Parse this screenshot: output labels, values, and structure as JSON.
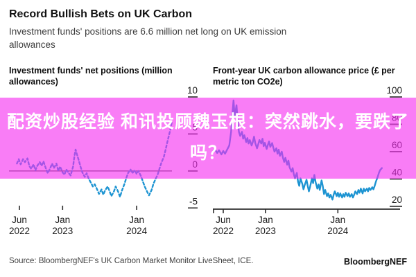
{
  "header": {
    "title": "Record Bullish Bets on UK Carbon",
    "subtitle": "Investment funds' positions are 6.6 million net long on UK emission allowances"
  },
  "overlay": {
    "line1": "配资炒股经验 和讯投顾魏玉根：突然跳水，要跌了",
    "line2": "吗？",
    "bg_color": "#F52DF0",
    "bg_opacity": 0.62,
    "text_color": "#FFFFFF"
  },
  "footer": {
    "source": "Source: BloombergNEF's UK Carbon Market Monitor LiveSheet, ICE.",
    "brand": "BloombergNEF"
  },
  "chart_data": [
    {
      "type": "line",
      "title": "Investment funds' net positions (million allowances)",
      "line_color": "#1D94D2",
      "line_style": "dashed",
      "ylim": [
        -6,
        10
      ],
      "yticks": [
        10,
        5,
        0,
        -5
      ],
      "zero_line": true,
      "x_axis_line": false,
      "x_unit": "months since Jun 2022",
      "xticks": [
        {
          "m": 0,
          "label": [
            "Jun",
            "2022"
          ]
        },
        {
          "m": 7,
          "label": [
            "Jan",
            "2023"
          ]
        },
        {
          "m": 19,
          "label": [
            "Jan",
            "2024"
          ]
        }
      ],
      "series": [
        {
          "name": "Investment funds' net positions (million allowances)",
          "points": [
            [
              -0.4,
              1.0
            ],
            [
              -0.1,
              1.6
            ],
            [
              0.2,
              0.9
            ],
            [
              0.6,
              1.6
            ],
            [
              0.9,
              1.2
            ],
            [
              1.3,
              1.7
            ],
            [
              1.6,
              0.7
            ],
            [
              1.9,
              0.3
            ],
            [
              2.3,
              0.9
            ],
            [
              2.6,
              0.1
            ],
            [
              2.9,
              0.7
            ],
            [
              3.3,
              1.2
            ],
            [
              3.6,
              0.7
            ],
            [
              3.9,
              1.3
            ],
            [
              4.3,
              0.3
            ],
            [
              4.6,
              -0.3
            ],
            [
              5.0,
              0.4
            ],
            [
              5.3,
              1.0
            ],
            [
              5.6,
              0.4
            ],
            [
              6.0,
              1.0
            ],
            [
              6.3,
              0.0
            ],
            [
              6.6,
              0.6
            ],
            [
              7.0,
              -0.2
            ],
            [
              7.3,
              -0.5
            ],
            [
              7.6,
              0.2
            ],
            [
              8.0,
              -0.3
            ],
            [
              8.3,
              -0.6
            ],
            [
              8.7,
              0.6
            ],
            [
              8.9,
              1.9
            ],
            [
              9.1,
              2.9
            ],
            [
              9.3,
              2.3
            ],
            [
              9.6,
              1.5
            ],
            [
              9.9,
              0.6
            ],
            [
              10.2,
              -0.2
            ],
            [
              10.6,
              -0.8
            ],
            [
              10.9,
              -0.3
            ],
            [
              11.2,
              -1.0
            ],
            [
              11.6,
              -1.6
            ],
            [
              11.9,
              -2.1
            ],
            [
              12.2,
              -1.8
            ],
            [
              12.6,
              -2.5
            ],
            [
              12.9,
              -3.1
            ],
            [
              13.3,
              -2.5
            ],
            [
              13.6,
              -3.2
            ],
            [
              13.9,
              -2.6
            ],
            [
              14.3,
              -2.1
            ],
            [
              14.6,
              -2.7
            ],
            [
              14.9,
              -3.4
            ],
            [
              15.3,
              -2.8
            ],
            [
              15.6,
              -2.1
            ],
            [
              16.0,
              -2.8
            ],
            [
              16.3,
              -3.5
            ],
            [
              16.6,
              -2.7
            ],
            [
              17.0,
              -1.8
            ],
            [
              17.3,
              -1.0
            ],
            [
              17.6,
              -0.3
            ],
            [
              18.0,
              0.2
            ],
            [
              18.3,
              -0.3
            ],
            [
              18.7,
              0.1
            ],
            [
              19.0,
              -0.4
            ],
            [
              19.3,
              0.0
            ],
            [
              19.7,
              -0.7
            ],
            [
              20.0,
              -1.4
            ],
            [
              20.3,
              -2.1
            ],
            [
              20.7,
              -2.8
            ],
            [
              21.0,
              -3.3
            ],
            [
              21.4,
              -2.6
            ],
            [
              21.7,
              -1.8
            ],
            [
              22.0,
              -1.2
            ],
            [
              22.4,
              -0.5
            ],
            [
              22.7,
              0.3
            ],
            [
              23.0,
              1.1
            ],
            [
              23.4,
              1.9
            ],
            [
              23.7,
              2.9
            ],
            [
              24.0,
              4.0
            ],
            [
              24.4,
              5.4
            ],
            [
              24.7,
              6.6
            ]
          ]
        }
      ]
    },
    {
      "type": "line",
      "title": "Front-year UK carbon allowance price (£ per metric ton CO2e)",
      "line_color": "#1D94D2",
      "line_style": "solid",
      "ylim": [
        18,
        100
      ],
      "yticks": [
        100,
        80,
        60,
        40,
        20
      ],
      "zero_line": false,
      "x_axis_line": true,
      "x_unit": "months since Jun 2022",
      "xticks": [
        {
          "m": 0,
          "label": [
            "Jun",
            "2022"
          ]
        },
        {
          "m": 7,
          "label": [
            "Jan",
            "2023"
          ]
        },
        {
          "m": 19,
          "label": [
            "Jan",
            "2024"
          ]
        }
      ],
      "series": [
        {
          "name": "Front-year UK carbon allowance price (£/t CO2e)",
          "points": [
            [
              -1.7,
              60
            ],
            [
              -1.4,
              62
            ],
            [
              -1.0,
              59
            ],
            [
              -0.7,
              61
            ],
            [
              -0.3,
              58
            ],
            [
              0.0,
              60.5
            ],
            [
              0.3,
              58.5
            ],
            [
              0.7,
              62
            ],
            [
              1.0,
              64.5
            ],
            [
              1.3,
              74.5
            ],
            [
              1.5,
              87
            ],
            [
              1.7,
              97.5
            ],
            [
              1.9,
              86
            ],
            [
              2.2,
              94
            ],
            [
              2.4,
              82
            ],
            [
              2.6,
              74.5
            ],
            [
              2.8,
              71.5
            ],
            [
              3.1,
              74.5
            ],
            [
              3.3,
              69.5
            ],
            [
              3.5,
              72
            ],
            [
              3.8,
              67
            ],
            [
              4.0,
              70
            ],
            [
              4.2,
              66
            ],
            [
              4.4,
              68.5
            ],
            [
              4.7,
              64.5
            ],
            [
              4.9,
              67
            ],
            [
              5.1,
              71
            ],
            [
              5.3,
              66.5
            ],
            [
              5.6,
              62.5
            ],
            [
              5.8,
              65.5
            ],
            [
              6.0,
              68.5
            ],
            [
              6.3,
              66
            ],
            [
              6.5,
              69.5
            ],
            [
              6.7,
              64
            ],
            [
              6.9,
              66.5
            ],
            [
              7.2,
              62
            ],
            [
              7.4,
              65
            ],
            [
              7.6,
              67.5
            ],
            [
              7.8,
              63.5
            ],
            [
              8.1,
              66.3
            ],
            [
              8.3,
              63
            ],
            [
              8.5,
              60
            ],
            [
              8.8,
              62.5
            ],
            [
              9.0,
              58.5
            ],
            [
              9.2,
              61.5
            ],
            [
              9.4,
              57
            ],
            [
              9.7,
              60
            ],
            [
              9.9,
              55.5
            ],
            [
              10.1,
              52.5
            ],
            [
              10.3,
              55.5
            ],
            [
              10.6,
              50.5
            ],
            [
              10.8,
              53.5
            ],
            [
              11.0,
              48.5
            ],
            [
              11.3,
              45.5
            ],
            [
              11.5,
              48
            ],
            [
              11.7,
              43.5
            ],
            [
              11.9,
              40.5
            ],
            [
              12.2,
              44.5
            ],
            [
              12.4,
              38
            ],
            [
              12.6,
              35
            ],
            [
              12.8,
              40.5
            ],
            [
              13.1,
              36.5
            ],
            [
              13.3,
              32.5
            ],
            [
              13.5,
              35.5
            ],
            [
              13.8,
              39.5
            ],
            [
              14.0,
              35
            ],
            [
              14.2,
              31
            ],
            [
              14.4,
              34.5
            ],
            [
              14.7,
              40.5
            ],
            [
              14.9,
              37
            ],
            [
              15.1,
              43
            ],
            [
              15.3,
              38
            ],
            [
              15.6,
              33
            ],
            [
              15.8,
              36
            ],
            [
              16.0,
              32
            ],
            [
              16.3,
              39
            ],
            [
              16.5,
              35
            ],
            [
              16.7,
              29
            ],
            [
              16.9,
              32
            ],
            [
              17.2,
              27.5
            ],
            [
              17.4,
              29.5
            ],
            [
              17.6,
              26.5
            ],
            [
              17.8,
              28.5
            ],
            [
              18.1,
              25
            ],
            [
              18.3,
              28.5
            ],
            [
              18.5,
              31
            ],
            [
              18.8,
              27.5
            ],
            [
              19.0,
              30
            ],
            [
              19.2,
              27
            ],
            [
              19.4,
              29.5
            ],
            [
              19.7,
              26.5
            ],
            [
              19.9,
              29
            ],
            [
              20.1,
              27
            ],
            [
              20.3,
              30
            ],
            [
              20.6,
              27.5
            ],
            [
              20.8,
              29.5
            ],
            [
              21.0,
              27
            ],
            [
              21.3,
              29
            ],
            [
              21.5,
              26.5
            ],
            [
              21.7,
              28.5
            ],
            [
              21.9,
              31
            ],
            [
              22.2,
              29
            ],
            [
              22.4,
              32
            ],
            [
              22.6,
              30
            ],
            [
              22.8,
              33
            ],
            [
              23.1,
              29.5
            ],
            [
              23.3,
              33
            ],
            [
              23.5,
              31
            ],
            [
              23.8,
              33
            ],
            [
              24.0,
              31
            ],
            [
              24.2,
              33.5
            ],
            [
              24.4,
              32
            ],
            [
              24.7,
              34
            ],
            [
              24.9,
              32.5
            ],
            [
              25.1,
              35
            ],
            [
              25.3,
              38
            ],
            [
              25.6,
              41.5
            ],
            [
              25.8,
              44.5
            ],
            [
              26.0,
              46.5
            ],
            [
              26.3,
              48
            ]
          ]
        }
      ]
    }
  ]
}
